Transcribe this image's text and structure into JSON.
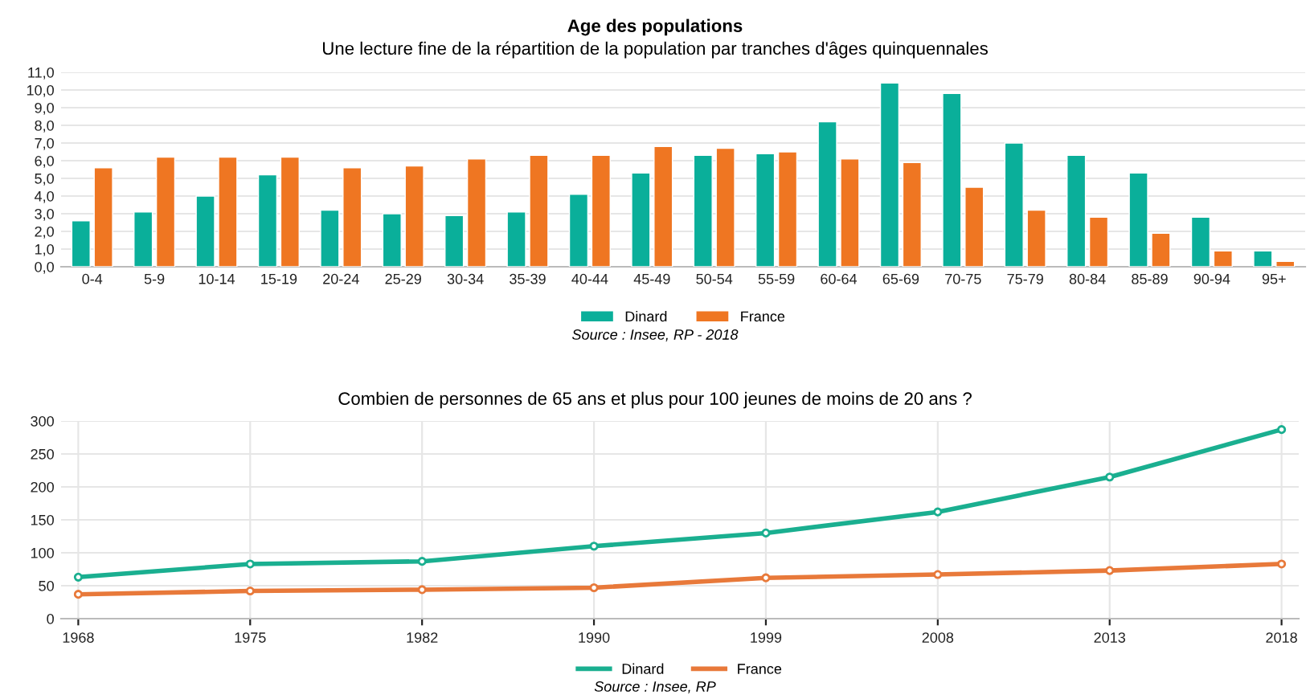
{
  "chart_data": [
    {
      "type": "bar",
      "title": "Age des populations",
      "subtitle": "Une lecture fine de la répartition de la population par tranches d'âges quinquennales",
      "categories": [
        "0-4",
        "5-9",
        "10-14",
        "15-19",
        "20-24",
        "25-29",
        "30-34",
        "35-39",
        "40-44",
        "45-49",
        "50-54",
        "55-59",
        "60-64",
        "65-69",
        "70-75",
        "75-79",
        "80-84",
        "85-89",
        "90-94",
        "95+"
      ],
      "series": [
        {
          "name": "Dinard",
          "color": "#0aaf9a",
          "values": [
            2.6,
            3.1,
            4.0,
            5.2,
            3.2,
            3.0,
            2.9,
            3.1,
            4.1,
            5.3,
            6.3,
            6.4,
            8.2,
            10.4,
            9.8,
            7.0,
            6.3,
            5.3,
            2.8,
            0.9
          ]
        },
        {
          "name": "France",
          "color": "#ef7622",
          "values": [
            5.6,
            6.2,
            6.2,
            6.2,
            5.6,
            5.7,
            6.1,
            6.3,
            6.3,
            6.8,
            6.7,
            6.5,
            6.1,
            5.9,
            4.5,
            3.2,
            2.8,
            1.9,
            0.9,
            0.3
          ]
        }
      ],
      "ylim": [
        0,
        11
      ],
      "yticks": [
        {
          "value": 0,
          "label": "0,0"
        },
        {
          "value": 1,
          "label": "1,0"
        },
        {
          "value": 2,
          "label": "2,0"
        },
        {
          "value": 3,
          "label": "3,0"
        },
        {
          "value": 4,
          "label": "4,0"
        },
        {
          "value": 5,
          "label": "5,0"
        },
        {
          "value": 6,
          "label": "6,0"
        },
        {
          "value": 7,
          "label": "7,0"
        },
        {
          "value": 8,
          "label": "8,0"
        },
        {
          "value": 9,
          "label": "9,0"
        },
        {
          "value": 10,
          "label": "10,0"
        },
        {
          "value": 11,
          "label": "11,0"
        }
      ],
      "grid": "y",
      "legend": "bottom",
      "annotations": [
        "Source : Insee, RP - 2018"
      ]
    },
    {
      "type": "line",
      "title": "Combien de personnes de 65 ans et plus pour 100 jeunes de moins de 20 ans ?",
      "categories": [
        "1968",
        "1975",
        "1982",
        "1990",
        "1999",
        "2008",
        "2013",
        "2018"
      ],
      "series": [
        {
          "name": "Dinard",
          "color": "#1aaf90",
          "values": [
            63,
            83,
            87,
            110,
            130,
            162,
            215,
            287
          ]
        },
        {
          "name": "France",
          "color": "#e8793a",
          "values": [
            37,
            42,
            44,
            47,
            62,
            67,
            73,
            83
          ]
        }
      ],
      "ylim": [
        0,
        300
      ],
      "yticks": [
        0,
        50,
        100,
        150,
        200,
        250,
        300
      ],
      "grid": true,
      "legend": "bottom",
      "marker": "circle",
      "line_style": "solid",
      "annotations": [
        "Source : Insee, RP"
      ]
    }
  ]
}
